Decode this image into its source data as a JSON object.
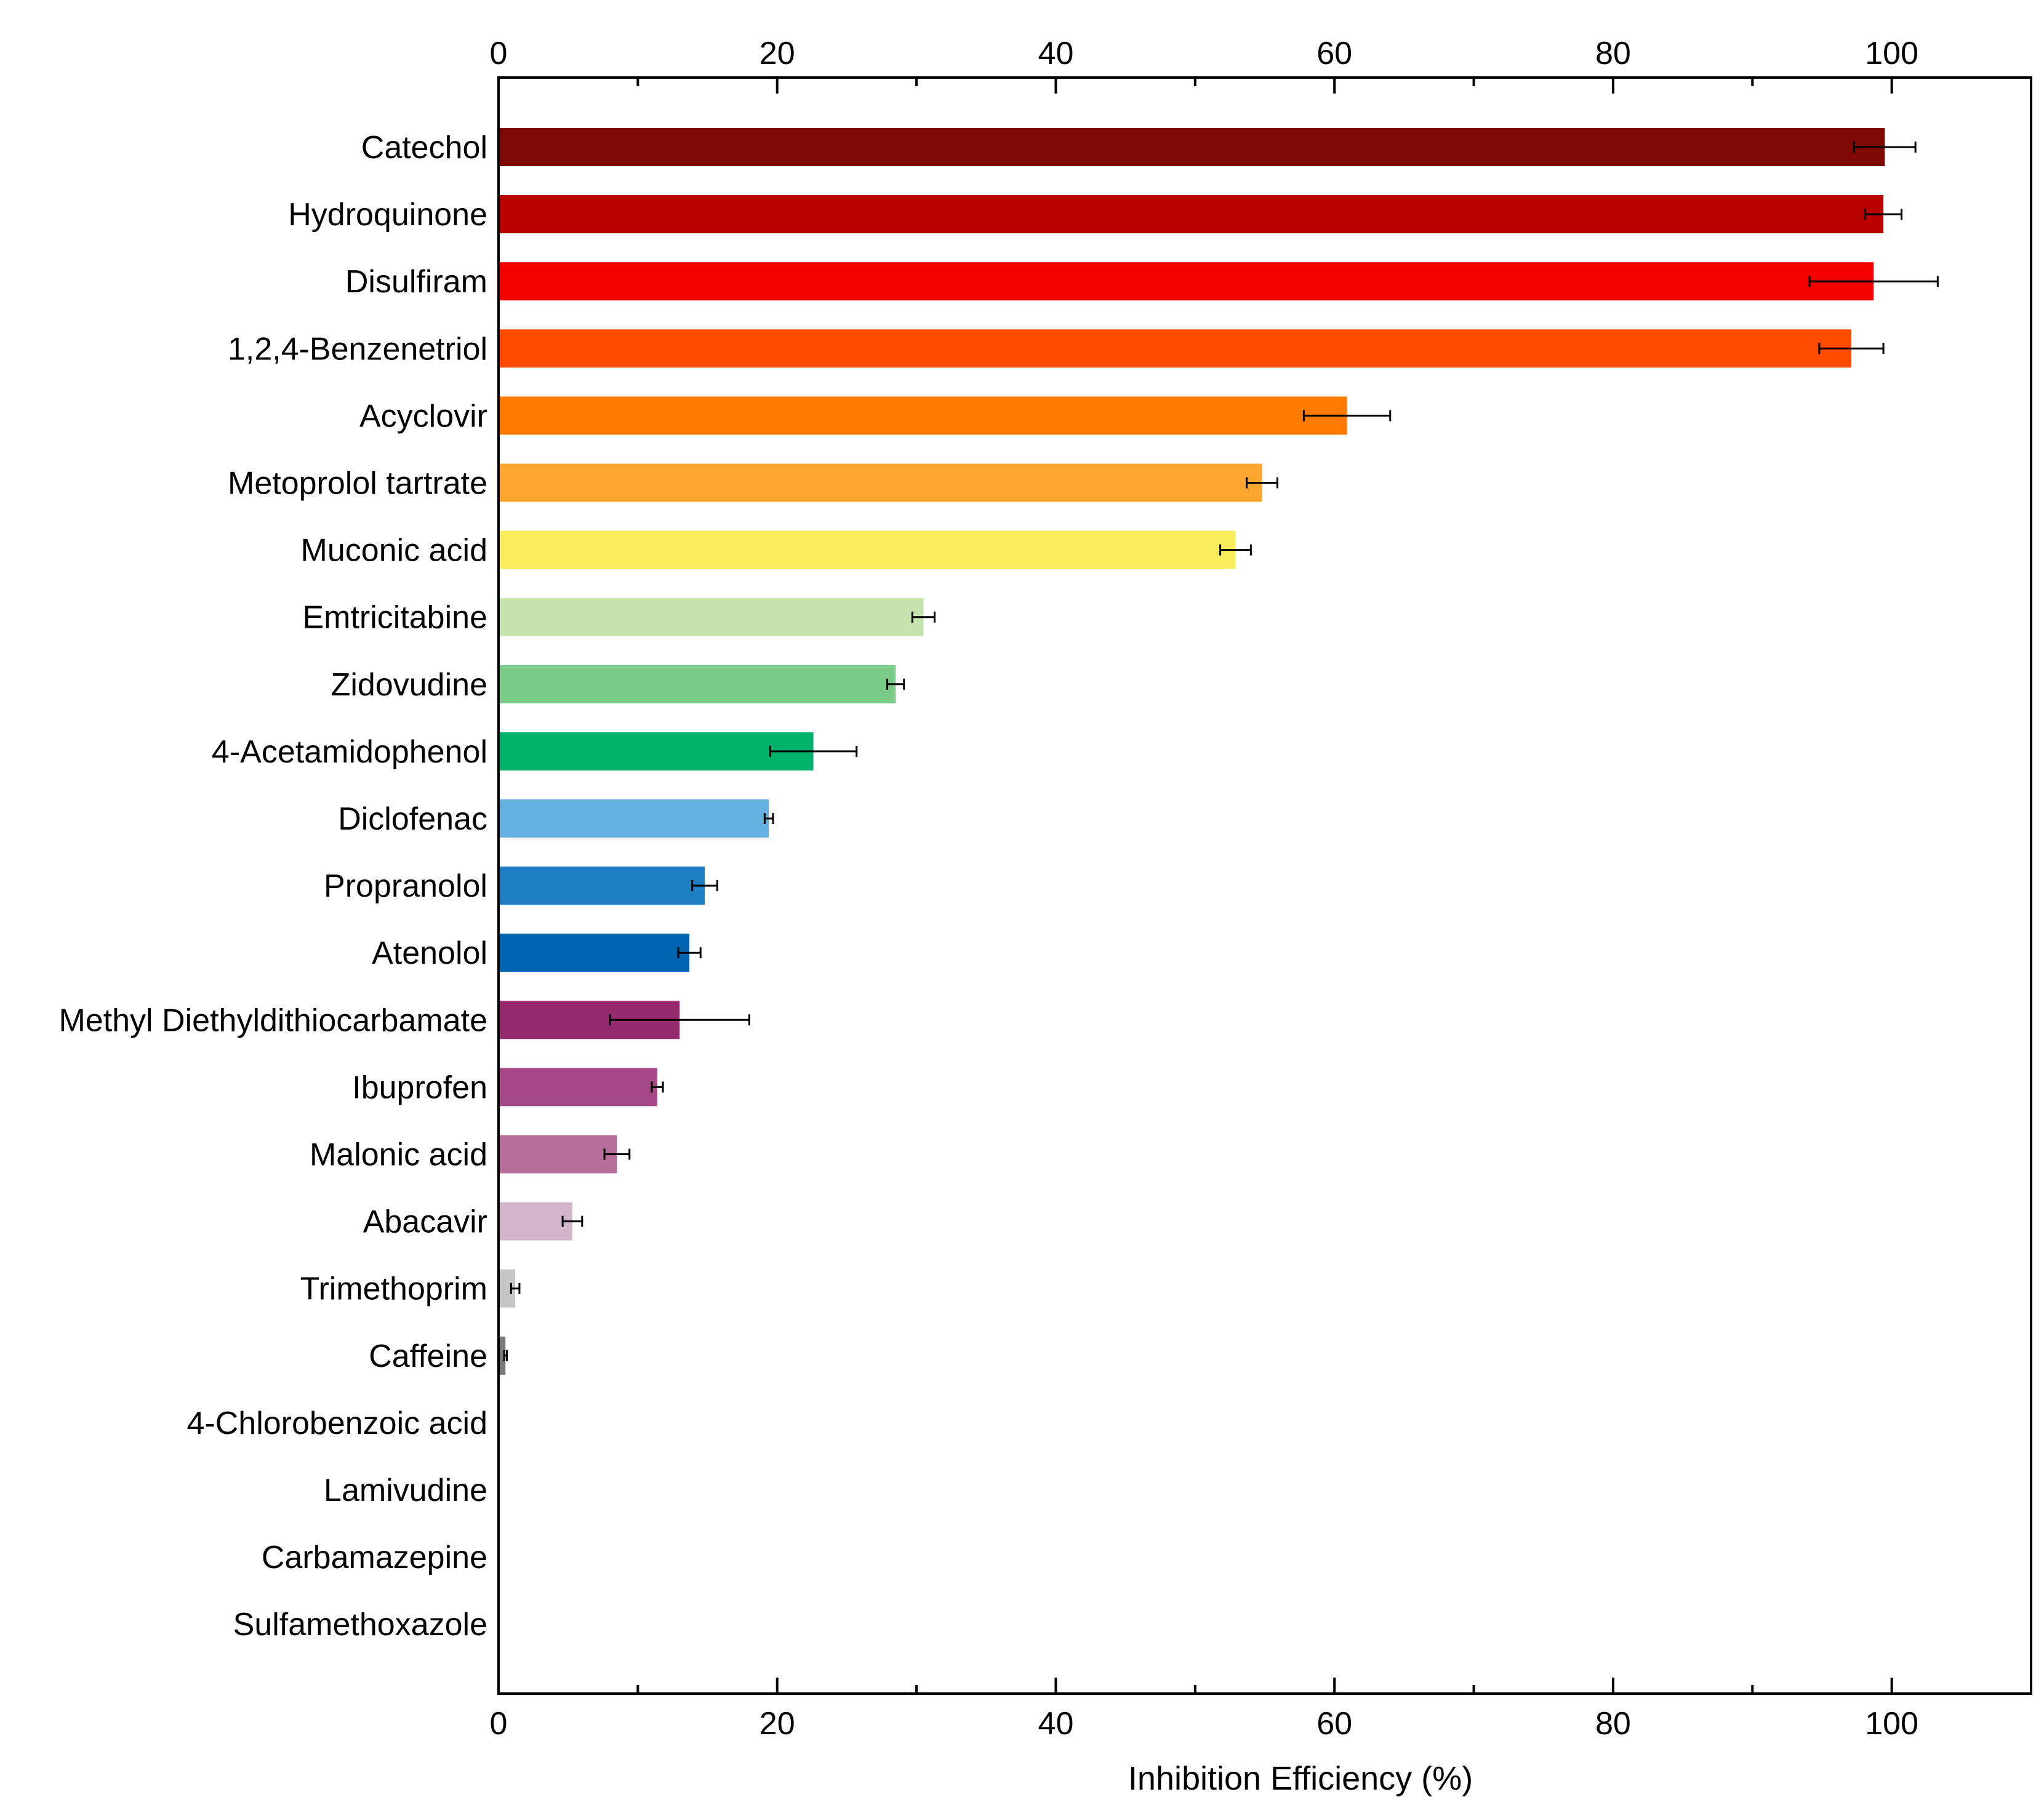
{
  "chart_data": {
    "type": "bar",
    "orientation": "horizontal",
    "title": "",
    "xlabel": "Inhibition Efficiency (%)",
    "ylabel": "",
    "xlim": [
      0,
      110
    ],
    "x_ticks": [
      0,
      20,
      40,
      60,
      80,
      100
    ],
    "x_minor_ticks": [
      10,
      30,
      50,
      70,
      90,
      110
    ],
    "x_tick_labels": [
      "0",
      "20",
      "40",
      "60",
      "80",
      "100"
    ],
    "grid": false,
    "legend": "none",
    "categories": [
      "Catechol",
      "Hydroquinone",
      "Disulfiram",
      "1,2,4-Benzenetriol",
      "Acyclovir",
      "Metoprolol tartrate",
      "Muconic acid",
      "Emtricitabine",
      "Zidovudine",
      "4-Acetamidophenol",
      "Diclofenac",
      "Propranolol",
      "Atenolol",
      "Methyl Diethyldithiocarbamate",
      "Ibuprofen",
      "Malonic acid",
      "Abacavir",
      "Trimethoprim",
      "Caffeine",
      "4-Chlorobenzoic acid",
      "Lamivudine",
      "Carbamazepine",
      "Sulfamethoxazole"
    ],
    "values": [
      99.5,
      99.4,
      98.7,
      97.1,
      60.9,
      54.8,
      52.9,
      30.5,
      28.5,
      22.6,
      19.4,
      14.8,
      13.7,
      13.0,
      11.4,
      8.5,
      5.3,
      1.2,
      0.5,
      0,
      0,
      0,
      0
    ],
    "errors": [
      2.2,
      1.3,
      4.6,
      2.3,
      3.1,
      1.1,
      1.1,
      0.8,
      0.6,
      3.1,
      0.3,
      0.9,
      0.8,
      5.0,
      0.4,
      0.9,
      0.7,
      0.3,
      0.1,
      0,
      0,
      0,
      0
    ],
    "colors": [
      "#7d0a02",
      "#b70201",
      "#f50100",
      "#fd4b00",
      "#fe7a00",
      "#fda530",
      "#f9ed5d",
      "#c6e2ad",
      "#7ccc89",
      "#00b26a",
      "#64b1e1",
      "#1d7ec1",
      "#0064b0",
      "#952a6e",
      "#a44a86",
      "#b76e9b",
      "#d3b5cb",
      "#c6c6c6",
      "#7a7a7a",
      "#ffffff",
      "#ffffff",
      "#ffffff",
      "#ffffff"
    ]
  }
}
